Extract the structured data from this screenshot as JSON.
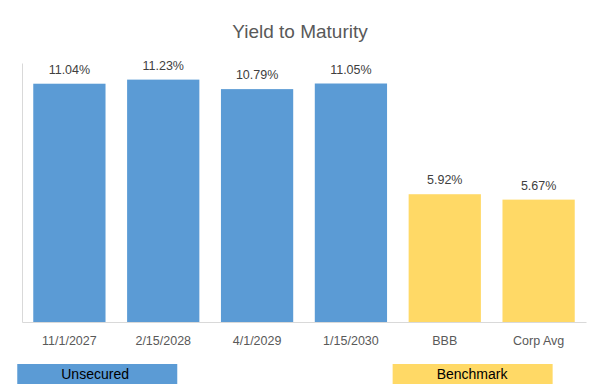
{
  "chart_data": {
    "type": "bar",
    "title": "Yield to Maturity",
    "categories": [
      "11/1/2027",
      "2/15/2028",
      "4/1/2029",
      "1/15/2030",
      "BBB",
      "Corp Avg"
    ],
    "series": [
      {
        "name": "Unsecured",
        "color": "#5b9bd5",
        "values": [
          11.04,
          11.23,
          10.79,
          11.05,
          null,
          null
        ],
        "value_labels": [
          "11.04%",
          "11.23%",
          "10.79%",
          "11.05%",
          null,
          null
        ]
      },
      {
        "name": "Benchmark",
        "color": "#ffd966",
        "values": [
          null,
          null,
          null,
          null,
          5.92,
          5.67
        ],
        "value_labels": [
          null,
          null,
          null,
          null,
          "5.92%",
          "5.67%"
        ]
      }
    ],
    "ylim": [
      0,
      12
    ],
    "data_labels": true,
    "tick_labels": "x",
    "legend": "bottom",
    "grid": false
  }
}
